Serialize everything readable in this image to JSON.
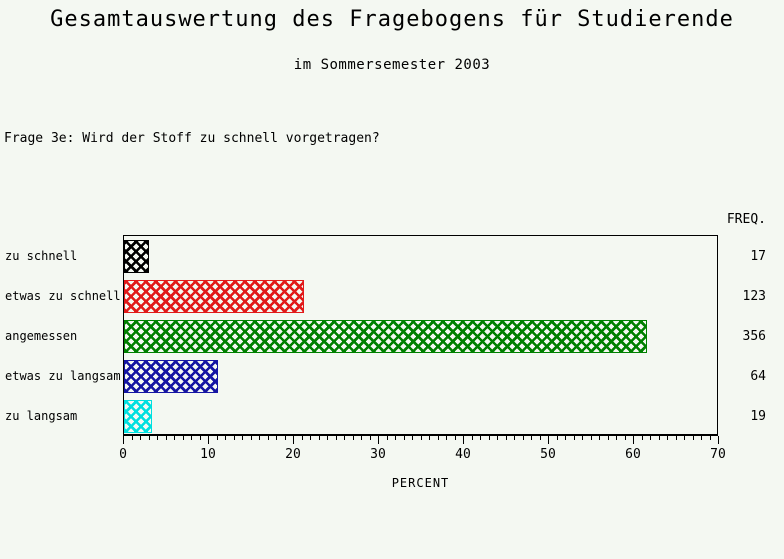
{
  "page": {
    "title": "Gesamtauswertung des Fragebogens für Studierende",
    "subtitle": "im Sommersemester 2003",
    "question": "Frage 3e: Wird der Stoff zu schnell vorgetragen?"
  },
  "chart_data": {
    "type": "bar",
    "orientation": "horizontal",
    "title": "Gesamtauswertung des Fragebogens für Studierende",
    "subtitle": "im Sommersemester 2003",
    "annotation": "Frage 3e: Wird der Stoff zu schnell vorgetragen?",
    "categories": [
      "zu schnell",
      "etwas zu schnell",
      "angemessen",
      "etwas zu langsam",
      "zu langsam"
    ],
    "series": [
      {
        "name": "PERCENT",
        "values": [
          2.9,
          21.2,
          61.5,
          11.1,
          3.3
        ]
      },
      {
        "name": "FREQ.",
        "values": [
          17,
          123,
          356,
          64,
          19
        ]
      }
    ],
    "freq_header": "FREQ.",
    "xlabel": "PERCENT",
    "xlim": [
      0,
      70
    ],
    "x_major_ticks": [
      0,
      10,
      20,
      30,
      40,
      50,
      60,
      70
    ],
    "x_minor_tick_interval": 1,
    "bar_colors": [
      "#000000",
      "#e11a1a",
      "#008000",
      "#1515a3",
      "#00e0e0"
    ],
    "bar_pattern": "crosshatch",
    "frame": true,
    "grid": false,
    "legend_position": "none",
    "background_color": "#f4f8f2"
  }
}
